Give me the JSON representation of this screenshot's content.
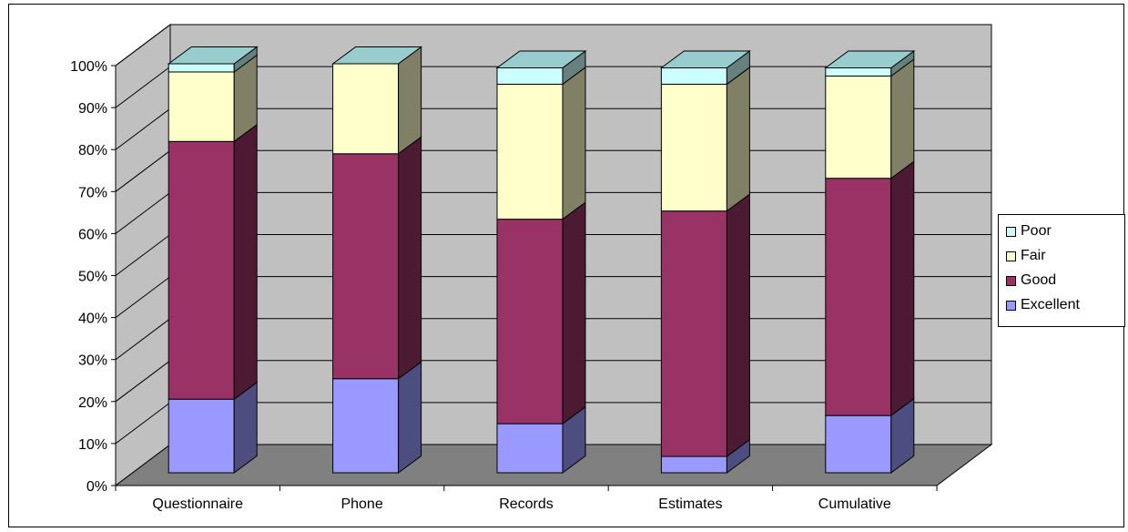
{
  "chart_data": {
    "type": "bar",
    "stacked": true,
    "percent_stacked": true,
    "three_d": true,
    "categories": [
      "Questionnaire",
      "Phone",
      "Records",
      "Estimates",
      "Cumulative"
    ],
    "series": [
      {
        "name": "Excellent",
        "color": "#9999ff",
        "values": [
          18,
          23,
          12,
          4,
          14
        ]
      },
      {
        "name": "Good",
        "color": "#993366",
        "values": [
          63,
          55,
          50,
          60,
          58
        ]
      },
      {
        "name": "Fair",
        "color": "#ffffcc",
        "values": [
          17,
          22,
          33,
          31,
          25
        ]
      },
      {
        "name": "Poor",
        "color": "#ccffff",
        "values": [
          2,
          0,
          4,
          4,
          2
        ]
      }
    ],
    "yticks": [
      "0%",
      "10%",
      "20%",
      "30%",
      "40%",
      "50%",
      "60%",
      "70%",
      "80%",
      "90%",
      "100%"
    ],
    "ylim": [
      0,
      100
    ],
    "grid": true,
    "legend_position": "right",
    "colors": {
      "wall": "#c0c0c0",
      "floor": "#808080",
      "background": "#ffffff"
    }
  }
}
